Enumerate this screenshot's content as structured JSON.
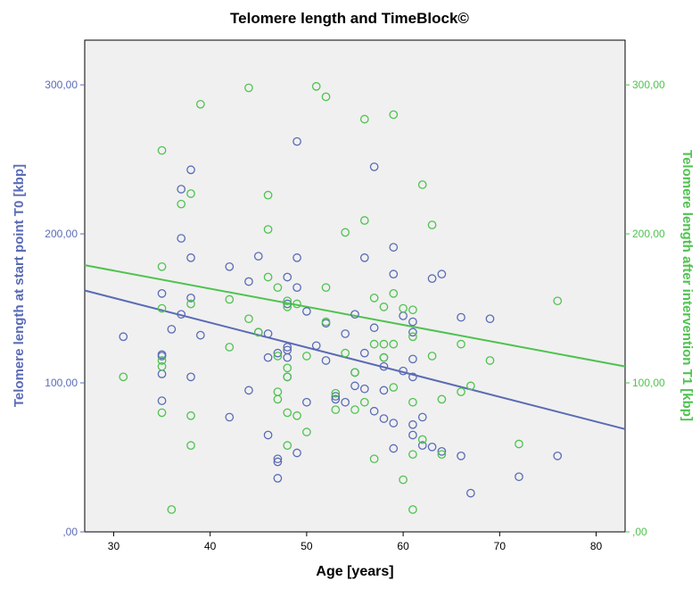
{
  "chart_data": {
    "type": "scatter",
    "title": "Telomere length and TimeBlock©",
    "xlabel": "Age [years]",
    "ylabel_left": "Telomere length at start point T0 [kbp]",
    "ylabel_right": "Telomere length after intervention T1 [kbp]",
    "xlim": [
      27,
      83
    ],
    "ylim": [
      0,
      330
    ],
    "x_ticks": [
      "30",
      "40",
      "50",
      "60",
      "70",
      "80"
    ],
    "x_tick_values": [
      30,
      40,
      50,
      60,
      70,
      80
    ],
    "y_tick_values": [
      0,
      100,
      200,
      300
    ],
    "y_left_ticks": [
      ",00",
      "100,00",
      "200,00",
      "300,00"
    ],
    "y_right_ticks": [
      ",00",
      "100,00",
      "200,00",
      "300,00"
    ],
    "grid": false,
    "colors": {
      "t0": "#5a6bb5",
      "t1": "#4ec34e",
      "plot_bg": "#f0f0f0",
      "axis": "#000000"
    },
    "series": [
      {
        "key": "t0",
        "axis": "left",
        "points": [
          [
            31,
            131
          ],
          [
            35,
            119
          ],
          [
            35,
            118
          ],
          [
            35,
            106
          ],
          [
            35,
            88
          ],
          [
            35,
            160
          ],
          [
            36,
            136
          ],
          [
            37,
            197
          ],
          [
            37,
            230
          ],
          [
            37,
            146
          ],
          [
            38,
            243
          ],
          [
            38,
            184
          ],
          [
            38,
            157
          ],
          [
            38,
            104
          ],
          [
            39,
            132
          ],
          [
            42,
            178
          ],
          [
            42,
            77
          ],
          [
            44,
            95
          ],
          [
            44,
            168
          ],
          [
            45,
            134
          ],
          [
            45,
            185
          ],
          [
            46,
            133
          ],
          [
            46,
            117
          ],
          [
            46,
            65
          ],
          [
            47,
            49
          ],
          [
            47,
            47
          ],
          [
            47,
            36
          ],
          [
            47,
            120
          ],
          [
            48,
            171
          ],
          [
            48,
            153
          ],
          [
            48,
            124
          ],
          [
            48,
            122
          ],
          [
            48,
            117
          ],
          [
            48,
            104
          ],
          [
            49,
            262
          ],
          [
            49,
            184
          ],
          [
            49,
            164
          ],
          [
            49,
            53
          ],
          [
            50,
            148
          ],
          [
            50,
            87
          ],
          [
            51,
            125
          ],
          [
            52,
            140
          ],
          [
            52,
            115
          ],
          [
            53,
            91
          ],
          [
            53,
            89
          ],
          [
            54,
            133
          ],
          [
            54,
            87
          ],
          [
            55,
            146
          ],
          [
            55,
            98
          ],
          [
            55,
            107
          ],
          [
            56,
            184
          ],
          [
            56,
            120
          ],
          [
            56,
            96
          ],
          [
            57,
            245
          ],
          [
            57,
            137
          ],
          [
            57,
            81
          ],
          [
            58,
            117
          ],
          [
            58,
            111
          ],
          [
            58,
            95
          ],
          [
            58,
            76
          ],
          [
            59,
            191
          ],
          [
            59,
            173
          ],
          [
            59,
            73
          ],
          [
            59,
            56
          ],
          [
            60,
            145
          ],
          [
            60,
            108
          ],
          [
            61,
            141
          ],
          [
            61,
            134
          ],
          [
            61,
            116
          ],
          [
            61,
            104
          ],
          [
            61,
            72
          ],
          [
            61,
            65
          ],
          [
            62,
            77
          ],
          [
            62,
            58
          ],
          [
            63,
            170
          ],
          [
            63,
            57
          ],
          [
            64,
            173
          ],
          [
            64,
            54
          ],
          [
            66,
            144
          ],
          [
            66,
            51
          ],
          [
            67,
            26
          ],
          [
            69,
            143
          ],
          [
            72,
            37
          ],
          [
            76,
            51
          ]
        ],
        "trend": [
          [
            27,
            162
          ],
          [
            83,
            69
          ]
        ]
      },
      {
        "key": "t1",
        "axis": "right",
        "points": [
          [
            31,
            104
          ],
          [
            35,
            256
          ],
          [
            35,
            178
          ],
          [
            35,
            150
          ],
          [
            35,
            115
          ],
          [
            35,
            111
          ],
          [
            35,
            80
          ],
          [
            36,
            15
          ],
          [
            37,
            220
          ],
          [
            38,
            227
          ],
          [
            38,
            153
          ],
          [
            38,
            78
          ],
          [
            38,
            58
          ],
          [
            39,
            287
          ],
          [
            42,
            156
          ],
          [
            42,
            124
          ],
          [
            44,
            298
          ],
          [
            44,
            143
          ],
          [
            45,
            134
          ],
          [
            46,
            226
          ],
          [
            46,
            203
          ],
          [
            46,
            171
          ],
          [
            47,
            164
          ],
          [
            47,
            118
          ],
          [
            47,
            94
          ],
          [
            47,
            89
          ],
          [
            48,
            155
          ],
          [
            48,
            151
          ],
          [
            48,
            110
          ],
          [
            48,
            104
          ],
          [
            48,
            80
          ],
          [
            48,
            58
          ],
          [
            49,
            153
          ],
          [
            49,
            78
          ],
          [
            50,
            118
          ],
          [
            50,
            67
          ],
          [
            51,
            299
          ],
          [
            52,
            292
          ],
          [
            52,
            164
          ],
          [
            52,
            141
          ],
          [
            53,
            93
          ],
          [
            53,
            82
          ],
          [
            54,
            201
          ],
          [
            54,
            120
          ],
          [
            55,
            107
          ],
          [
            55,
            82
          ],
          [
            56,
            277
          ],
          [
            56,
            209
          ],
          [
            56,
            87
          ],
          [
            57,
            157
          ],
          [
            57,
            126
          ],
          [
            57,
            49
          ],
          [
            58,
            151
          ],
          [
            58,
            126
          ],
          [
            58,
            117
          ],
          [
            59,
            280
          ],
          [
            59,
            160
          ],
          [
            59,
            126
          ],
          [
            59,
            97
          ],
          [
            60,
            150
          ],
          [
            60,
            35
          ],
          [
            61,
            149
          ],
          [
            61,
            131
          ],
          [
            61,
            87
          ],
          [
            61,
            52
          ],
          [
            61,
            15
          ],
          [
            62,
            233
          ],
          [
            62,
            62
          ],
          [
            63,
            206
          ],
          [
            63,
            118
          ],
          [
            64,
            89
          ],
          [
            64,
            52
          ],
          [
            66,
            126
          ],
          [
            66,
            94
          ],
          [
            67,
            98
          ],
          [
            69,
            115
          ],
          [
            72,
            59
          ],
          [
            76,
            155
          ]
        ],
        "trend": [
          [
            27,
            179
          ],
          [
            83,
            111
          ]
        ]
      }
    ]
  }
}
